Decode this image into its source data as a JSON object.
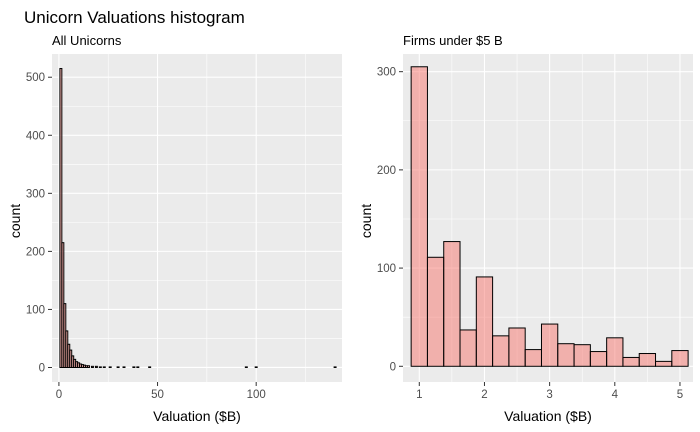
{
  "figure": {
    "title": "Unicorn Valuations histogram"
  },
  "chart_data": [
    {
      "type": "bar",
      "subtitle": "All Unicorns",
      "xlabel": "Valuation ($B)",
      "ylabel": "count",
      "xlim": [
        -3.5,
        143.5
      ],
      "ylim": [
        -25,
        540
      ],
      "x_ticks": [
        0,
        50,
        100
      ],
      "y_ticks": [
        0,
        100,
        200,
        300,
        400,
        500
      ],
      "bin_width": 1,
      "bins": [
        [
          1,
          515
        ],
        [
          2,
          215
        ],
        [
          3,
          110
        ],
        [
          4,
          63
        ],
        [
          5,
          40
        ],
        [
          6,
          30
        ],
        [
          7,
          20
        ],
        [
          8,
          14
        ],
        [
          9,
          10
        ],
        [
          10,
          8
        ],
        [
          11,
          6
        ],
        [
          12,
          5
        ],
        [
          13,
          4
        ],
        [
          14,
          3
        ],
        [
          15,
          3
        ],
        [
          17,
          2
        ],
        [
          19,
          2
        ],
        [
          21,
          1
        ],
        [
          23,
          1
        ],
        [
          26,
          1
        ],
        [
          30,
          1
        ],
        [
          33,
          1
        ],
        [
          38,
          1
        ],
        [
          40,
          1
        ],
        [
          46,
          1
        ],
        [
          95,
          1
        ],
        [
          100,
          1
        ],
        [
          140,
          1
        ]
      ],
      "grid": true,
      "fill": "#F8766D",
      "fill_opacity": 0.5,
      "panel_background": "#EBEBEB"
    },
    {
      "type": "bar",
      "subtitle": "Firms under $5 B",
      "xlabel": "Valuation ($B)",
      "ylabel": "count",
      "xlim": [
        0.75,
        5.2
      ],
      "ylim": [
        -16,
        318
      ],
      "x_ticks": [
        1,
        2,
        3,
        4,
        5
      ],
      "y_ticks": [
        0,
        100,
        200,
        300
      ],
      "bin_width": 0.25,
      "bins": [
        [
          1.0,
          305
        ],
        [
          1.25,
          111
        ],
        [
          1.5,
          127
        ],
        [
          1.75,
          37
        ],
        [
          2.0,
          91
        ],
        [
          2.25,
          31
        ],
        [
          2.5,
          39
        ],
        [
          2.75,
          17
        ],
        [
          3.0,
          43
        ],
        [
          3.25,
          23
        ],
        [
          3.5,
          22
        ],
        [
          3.75,
          15
        ],
        [
          4.0,
          29
        ],
        [
          4.25,
          9
        ],
        [
          4.5,
          13
        ],
        [
          4.75,
          5
        ],
        [
          5.0,
          16
        ]
      ],
      "grid": true,
      "fill": "#F8766D",
      "fill_opacity": 0.5,
      "panel_background": "#EBEBEB"
    }
  ]
}
